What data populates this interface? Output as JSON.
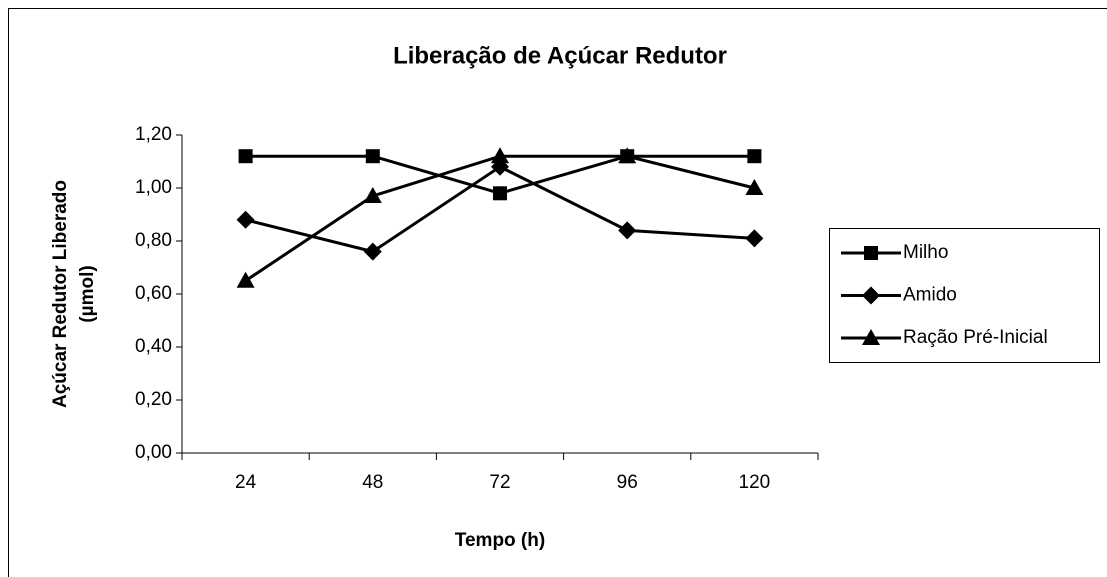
{
  "chart_data": {
    "type": "line",
    "title": "Liberação de Açúcar Redutor",
    "xlabel": "Tempo (h)",
    "ylabel": [
      "Açúcar Redutor Liberado",
      "(µmol)"
    ],
    "categories": [
      "24",
      "48",
      "72",
      "96",
      "120"
    ],
    "series": [
      {
        "name": "Milho",
        "color": "#000000",
        "marker": "square",
        "values": [
          1.12,
          1.12,
          0.98,
          1.12,
          1.12
        ]
      },
      {
        "name": "Amido",
        "color": "#000000",
        "marker": "diamond",
        "values": [
          0.88,
          0.76,
          1.08,
          0.84,
          0.81
        ]
      },
      {
        "name": "Ração Pré-Inicial",
        "color": "#000000",
        "marker": "triangle",
        "values": [
          0.65,
          0.97,
          1.12,
          1.12,
          1.0
        ]
      }
    ],
    "ylim": [
      0,
      1.2
    ],
    "yticks": [
      {
        "value": 0,
        "label": "0,00"
      },
      {
        "value": 0.2,
        "label": "0,20"
      },
      {
        "value": 0.4,
        "label": "0,40"
      },
      {
        "value": 0.6,
        "label": "0,60"
      },
      {
        "value": 0.8,
        "label": "0,80"
      },
      {
        "value": 1.0,
        "label": "1,00"
      },
      {
        "value": 1.2,
        "label": "1,20"
      }
    ],
    "legend": "right",
    "grid": false
  }
}
